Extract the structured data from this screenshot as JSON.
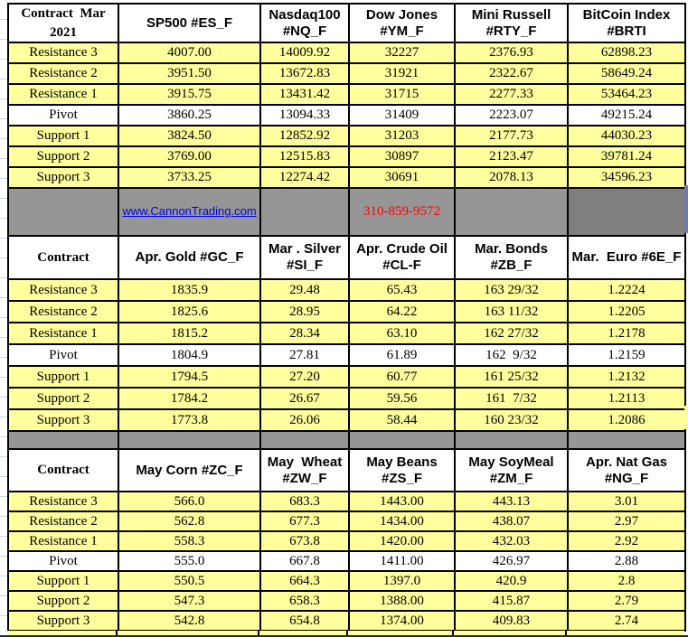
{
  "colors": {
    "cell_yellow": "#FFFF9D",
    "band_gray": "#969696",
    "band_gray_dark": "#7F7F7F",
    "link_blue": "#0000EE",
    "phone_red": "#FF0000",
    "border_black": "#000000",
    "edge_sliver_blue": "#7278A8"
  },
  "banner": {
    "link": "www.CannonTrading.com",
    "phone": "310-859-9572"
  },
  "row_labels": [
    "Resistance 3",
    "Resistance 2",
    "Resistance 1",
    "Pivot",
    "Support 1",
    "Support 2",
    "Support 3"
  ],
  "sections": [
    {
      "corner": "Contract  Mar\n2021",
      "headers": [
        "SP500 #ES_F",
        "Nasdaq100\n#NQ_F",
        "Dow Jones\n#YM_F",
        "Mini Russell\n#RTY_F",
        "BitCoin Index\n#BRTI"
      ],
      "rows": [
        {
          "label": "Resistance 3",
          "values": [
            "4007.00",
            "14009.92",
            "32227",
            "2376.93",
            "62898.23"
          ]
        },
        {
          "label": "Resistance 2",
          "values": [
            "3951.50",
            "13672.83",
            "31921",
            "2322.67",
            "58649.24"
          ]
        },
        {
          "label": "Resistance 1",
          "values": [
            "3915.75",
            "13431.42",
            "31715",
            "2277.33",
            "53464.23"
          ]
        },
        {
          "label": "Pivot",
          "values": [
            "3860.25",
            "13094.33",
            "31409",
            "2223.07",
            "49215.24"
          ]
        },
        {
          "label": "Support 1",
          "values": [
            "3824.50",
            "12852.92",
            "31203",
            "2177.73",
            "44030.23"
          ]
        },
        {
          "label": "Support 2",
          "values": [
            "3769.00",
            "12515.83",
            "30897",
            "2123.47",
            "39781.24"
          ]
        },
        {
          "label": "Support 3",
          "values": [
            "3733.25",
            "12274.42",
            "30691",
            "2078.13",
            "34596.23"
          ]
        }
      ]
    },
    {
      "corner": "Contract",
      "headers": [
        "Apr. Gold #GC_F",
        "Mar . Silver\n#SI_F",
        "Apr. Crude Oil\n#CL-F",
        "Mar. Bonds  #ZB_F",
        "Mar.  Euro #6E_F"
      ],
      "rows": [
        {
          "label": "Resistance 3",
          "values": [
            "1835.9",
            "29.48",
            "65.43",
            "163 29/32",
            "1.2224"
          ]
        },
        {
          "label": "Resistance 2",
          "values": [
            "1825.6",
            "28.95",
            "64.22",
            "163 11/32",
            "1.2205"
          ]
        },
        {
          "label": "Resistance 1",
          "values": [
            "1815.2",
            "28.34",
            "63.10",
            "162 27/32",
            "1.2178"
          ]
        },
        {
          "label": "Pivot",
          "values": [
            "1804.9",
            "27.81",
            "61.89",
            "162  9/32",
            "1.2159"
          ]
        },
        {
          "label": "Support 1",
          "values": [
            "1794.5",
            "27.20",
            "60.77",
            "161 25/32",
            "1.2132"
          ]
        },
        {
          "label": "Support 2",
          "values": [
            "1784.2",
            "26.67",
            "59.56",
            "161  7/32",
            "1.2113"
          ]
        },
        {
          "label": "Support 3",
          "values": [
            "1773.8",
            "26.06",
            "58.44",
            "160 23/32",
            "1.2086"
          ]
        }
      ]
    },
    {
      "corner": "Contract",
      "headers": [
        "May Corn #ZC_F",
        "May  Wheat\n#ZW_F",
        "May Beans #ZS_F",
        "May SoyMeal\n#ZM_F",
        "Apr. Nat Gas #NG_F"
      ],
      "rows": [
        {
          "label": "Resistance 3",
          "values": [
            "566.0",
            "683.3",
            "1443.00",
            "443.13",
            "3.01"
          ]
        },
        {
          "label": "Resistance 2",
          "values": [
            "562.8",
            "677.3",
            "1434.00",
            "438.07",
            "2.97"
          ]
        },
        {
          "label": "Resistance 1",
          "values": [
            "558.3",
            "673.8",
            "1420.00",
            "432.03",
            "2.92"
          ]
        },
        {
          "label": "Pivot",
          "values": [
            "555.0",
            "667.8",
            "1411.00",
            "426.97",
            "2.88"
          ]
        },
        {
          "label": "Support 1",
          "values": [
            "550.5",
            "664.3",
            "1397.0",
            "420.9",
            "2.8"
          ]
        },
        {
          "label": "Support 2",
          "values": [
            "547.3",
            "658.3",
            "1388.00",
            "415.87",
            "2.79"
          ]
        },
        {
          "label": "Support 3",
          "values": [
            "542.8",
            "654.8",
            "1374.00",
            "409.83",
            "2.74"
          ]
        }
      ]
    }
  ]
}
